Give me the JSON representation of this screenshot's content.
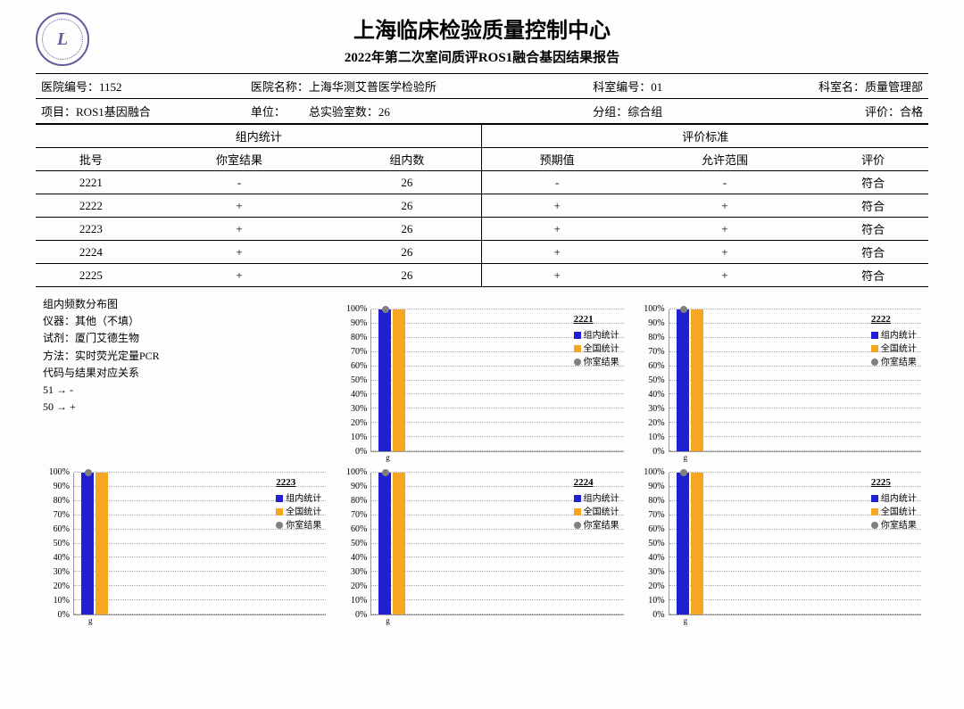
{
  "header": {
    "title": "上海临床检验质量控制中心",
    "subtitle": "2022年第二次室间质评ROS1融合基因结果报告"
  },
  "info_row1": {
    "hosp_code_label": "医院编号：",
    "hosp_code": "1152",
    "hosp_name_label": "医院名称：",
    "hosp_name": "上海华测艾普医学检验所",
    "dept_code_label": "科室编号：",
    "dept_code": "01",
    "dept_name_label": "科室名：",
    "dept_name": "质量管理部"
  },
  "info_row2": {
    "project_label": "项目：",
    "project": "ROS1基因融合",
    "unit_label": "单位：",
    "unit": "",
    "total_lab_label": "总实验室数：",
    "total_lab": "26",
    "group_label": "分组：",
    "group": "综合组",
    "eval_label": "评价：",
    "eval": "合格"
  },
  "table_headers": {
    "group1": "组内统计",
    "group2": "评价标准",
    "batch": "批号",
    "your_result": "你室结果",
    "in_group": "组内数",
    "expected": "预期值",
    "allowed": "允许范围",
    "eval": "评价"
  },
  "rows": [
    {
      "batch": "2221",
      "your": "-",
      "ingroup": "26",
      "expected": "-",
      "allowed": "-",
      "eval": "符合"
    },
    {
      "batch": "2222",
      "your": "+",
      "ingroup": "26",
      "expected": "+",
      "allowed": "+",
      "eval": "符合"
    },
    {
      "batch": "2223",
      "your": "+",
      "ingroup": "26",
      "expected": "+",
      "allowed": "+",
      "eval": "符合"
    },
    {
      "batch": "2224",
      "your": "+",
      "ingroup": "26",
      "expected": "+",
      "allowed": "+",
      "eval": "符合"
    },
    {
      "batch": "2225",
      "your": "+",
      "ingroup": "26",
      "expected": "+",
      "allowed": "+",
      "eval": "符合"
    }
  ],
  "info_block": {
    "line1": "组内频数分布图",
    "line2": "仪器：其他（不填）",
    "line3": "试剂：厦门艾德生物",
    "line4": "方法：实时荧光定量PCR",
    "line5": "代码与结果对应关系",
    "line6": "51 → -",
    "line7": "50 → +"
  },
  "chart_meta": {
    "y_ticks": [
      "100%",
      "90%",
      "80%",
      "70%",
      "60%",
      "50%",
      "40%",
      "30%",
      "20%",
      "10%",
      "0%"
    ],
    "x_label": "g",
    "legend_items": [
      "组内统计",
      "全国统计",
      "你室结果"
    ],
    "colors": {
      "series1": "#2020d0",
      "series2": "#f5a623",
      "marker": "#808080"
    }
  },
  "charts": [
    {
      "title": "2221",
      "bar1_pct": 100,
      "bar2_pct": 100,
      "marker_pct": 100
    },
    {
      "title": "2222",
      "bar1_pct": 100,
      "bar2_pct": 100,
      "marker_pct": 100
    },
    {
      "title": "2223",
      "bar1_pct": 100,
      "bar2_pct": 100,
      "marker_pct": 100
    },
    {
      "title": "2224",
      "bar1_pct": 100,
      "bar2_pct": 100,
      "marker_pct": 100
    },
    {
      "title": "2225",
      "bar1_pct": 100,
      "bar2_pct": 100,
      "marker_pct": 100
    }
  ]
}
